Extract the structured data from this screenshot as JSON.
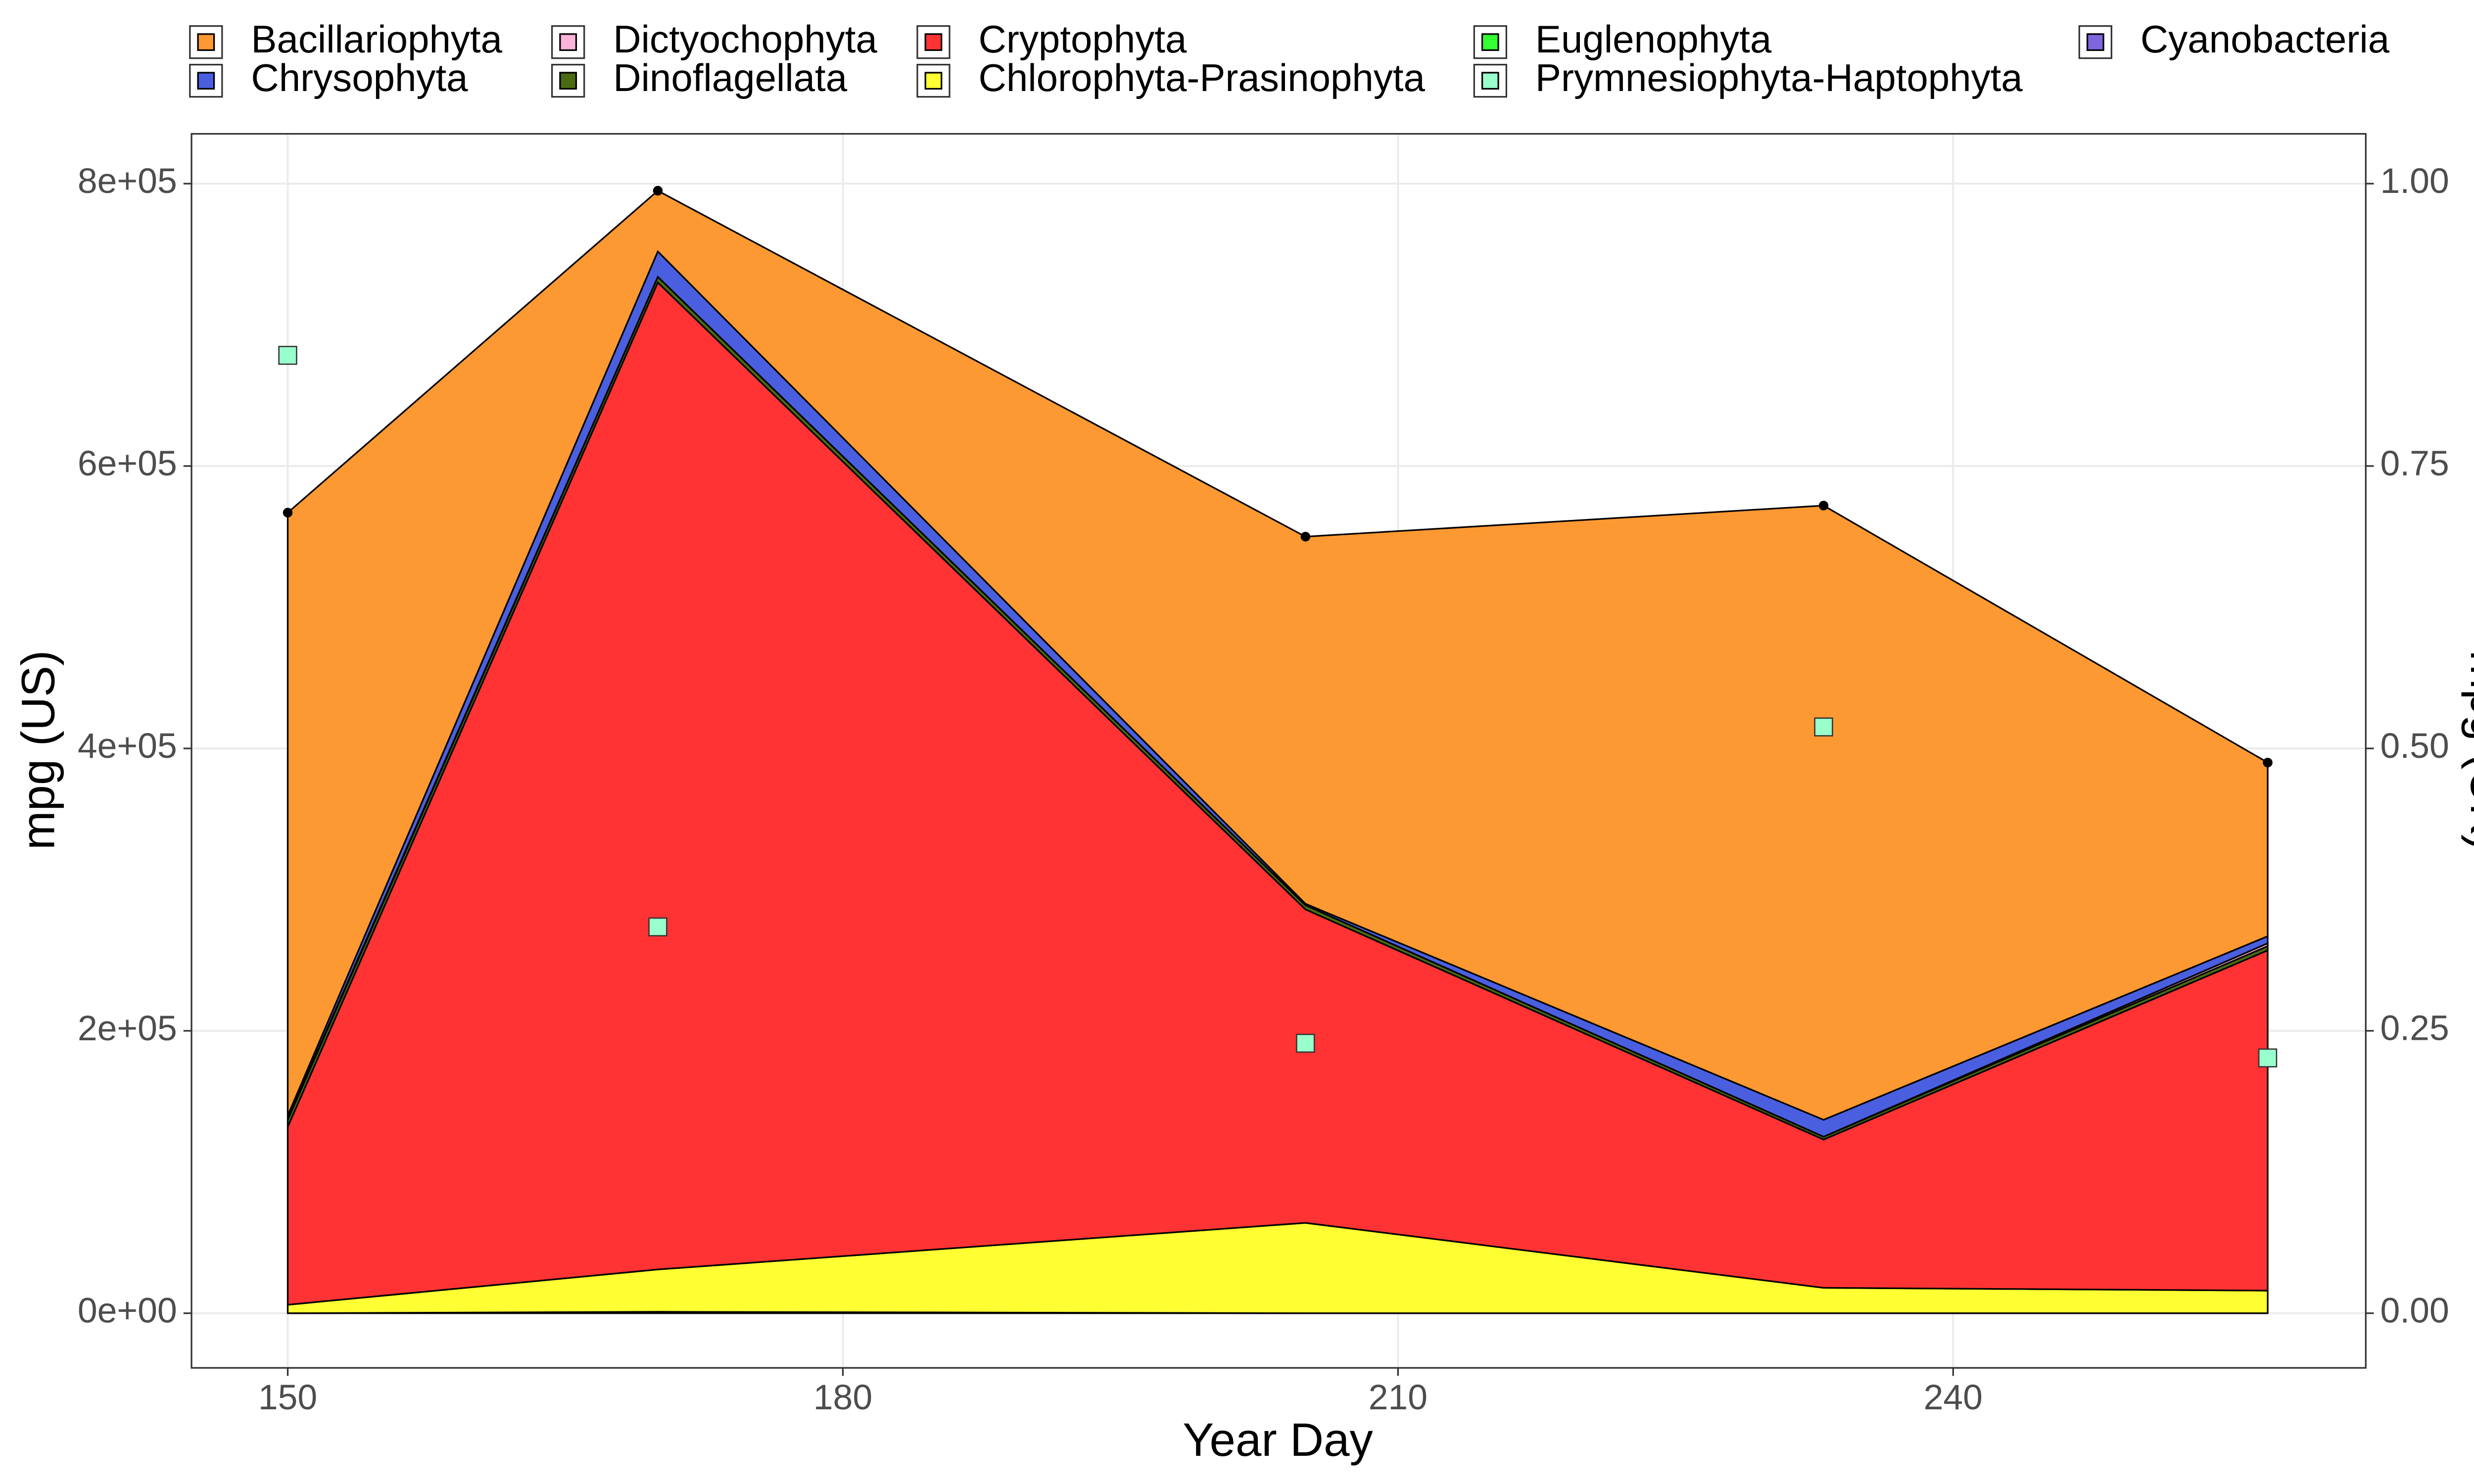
{
  "chart_data": {
    "type": "area",
    "stacked": true,
    "xlabel": "Year Day",
    "ylabel": "mpg (US)",
    "y2label": "mpg (UK)",
    "x": [
      150,
      170,
      205,
      233,
      257
    ],
    "xlim": [
      144.8,
      262.3
    ],
    "xticks": [
      150,
      180,
      210,
      240
    ],
    "ylim": [
      -38700,
      835300
    ],
    "yticks": [
      {
        "value": 0,
        "label": "0e+00"
      },
      {
        "value": 200000,
        "label": "2e+05"
      },
      {
        "value": 400000,
        "label": "4e+05"
      },
      {
        "value": 600000,
        "label": "6e+05"
      },
      {
        "value": 800000,
        "label": "8e+05"
      }
    ],
    "y2lim": [
      -0.0484,
      1.0441
    ],
    "y2ticks": [
      {
        "value": 0,
        "label": "0.00"
      },
      {
        "value": 0.25,
        "label": "0.25"
      },
      {
        "value": 0.5,
        "label": "0.50"
      },
      {
        "value": 0.75,
        "label": "0.75"
      },
      {
        "value": 1,
        "label": "1.00"
      }
    ],
    "grid": true,
    "legend": "top",
    "total_points": true,
    "series": [
      {
        "name": "Bacillariophyta",
        "color": "#fd9933",
        "values": [
          427000,
          43000,
          260000,
          435000,
          123000
        ]
      },
      {
        "name": "Chrysophyta",
        "color": "#4a5fe0",
        "values": [
          2000,
          18000,
          1000,
          12000,
          5000
        ]
      },
      {
        "name": "Dictyochophyta",
        "color": "#ffb3d9",
        "values": [
          1000,
          0,
          0,
          0,
          2000
        ]
      },
      {
        "name": "Dinoflagellata",
        "color": "#4b6b12",
        "values": [
          5000,
          4000,
          3000,
          2000,
          3000
        ]
      },
      {
        "name": "Cryptophyta",
        "color": "#ff3333",
        "values": [
          126000,
          699000,
          222000,
          105000,
          241000
        ]
      },
      {
        "name": "Chlorophyta-Prasinophyta",
        "color": "#ffff33",
        "values": [
          6000,
          30000,
          64000,
          18000,
          16000
        ]
      },
      {
        "name": "Euglenophyta",
        "color": "#33ff33",
        "values": [
          0,
          0,
          0,
          0,
          0
        ]
      },
      {
        "name": "Prymnesiophyta-Haptophyta",
        "color": "#99ffcc",
        "type": "scatter",
        "axis": "y2",
        "values": [
          0.848,
          0.342,
          0.239,
          0.519,
          0.226
        ]
      },
      {
        "name": "Cyanobacteria",
        "color": "#8066dd",
        "values": [
          0,
          1000,
          0,
          0,
          0
        ]
      }
    ]
  }
}
